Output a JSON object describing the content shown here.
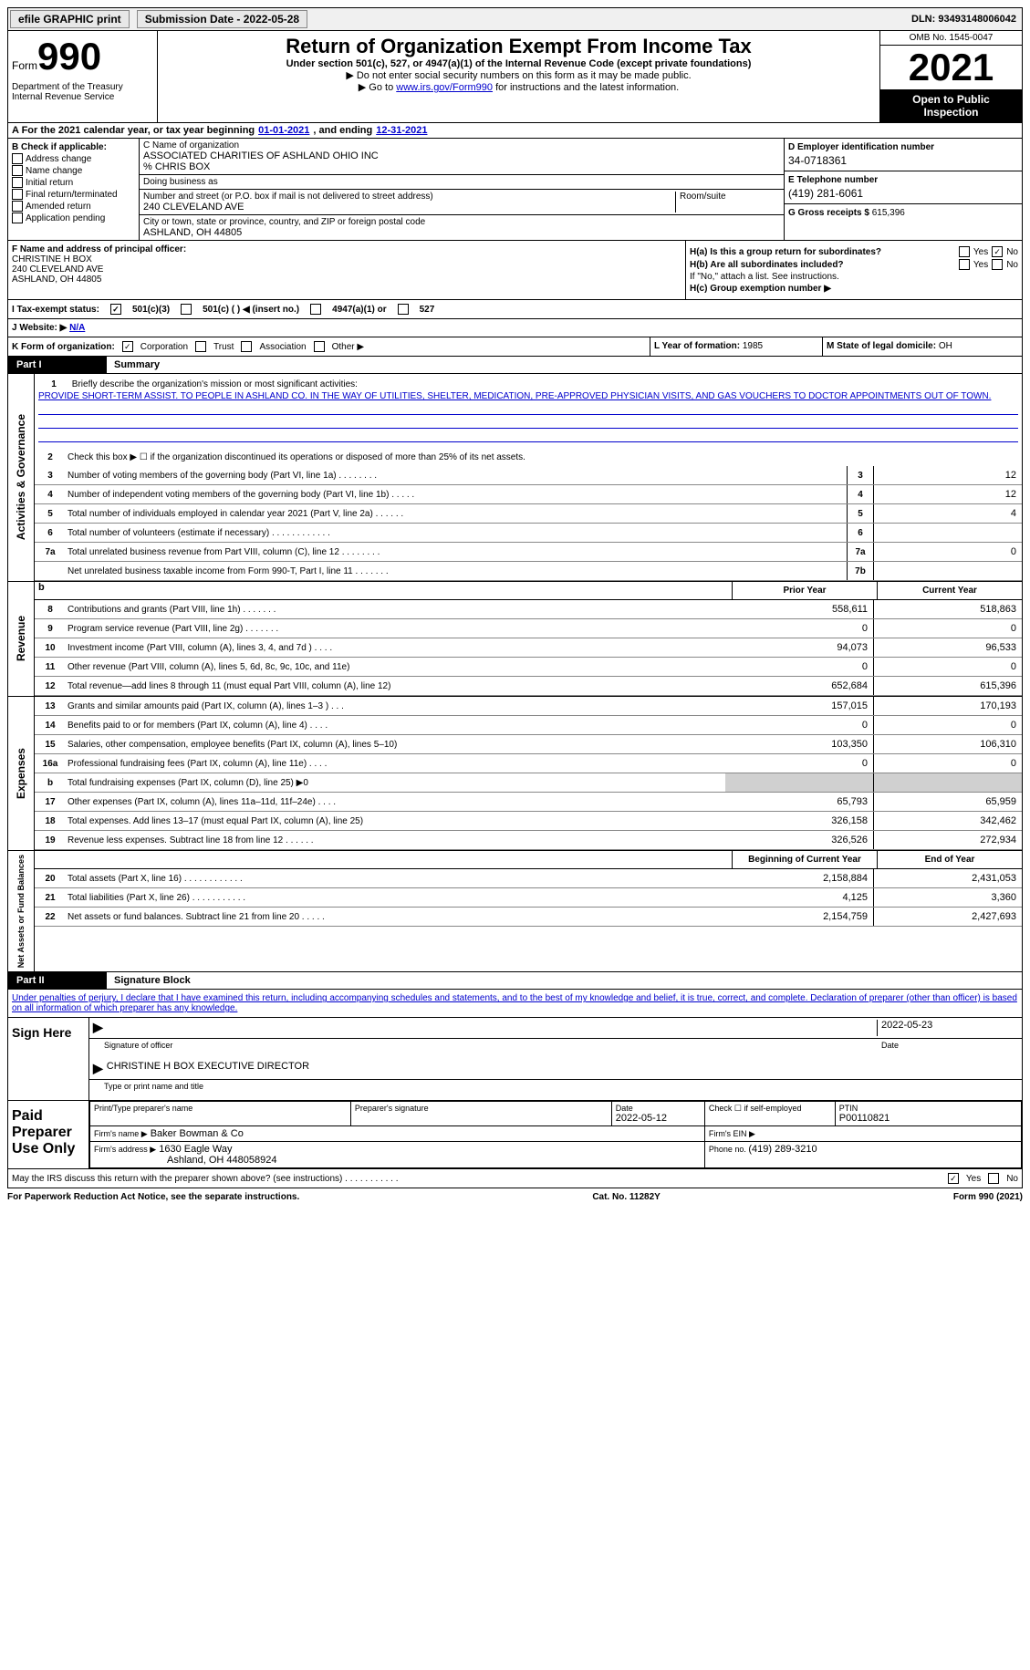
{
  "topbar": {
    "efile": "efile GRAPHIC print",
    "submission_label": "Submission Date - ",
    "submission_date": "2022-05-28",
    "dln_label": "DLN: ",
    "dln": "93493148006042"
  },
  "header": {
    "form_word": "Form",
    "form_num": "990",
    "dept": "Department of the Treasury\nInternal Revenue Service",
    "title": "Return of Organization Exempt From Income Tax",
    "subtitle": "Under section 501(c), 527, or 4947(a)(1) of the Internal Revenue Code (except private foundations)",
    "note1": "▶ Do not enter social security numbers on this form as it may be made public.",
    "note2_pre": "▶ Go to ",
    "note2_link": "www.irs.gov/Form990",
    "note2_post": " for instructions and the latest information.",
    "omb": "OMB No. 1545-0047",
    "year": "2021",
    "inspect": "Open to Public Inspection"
  },
  "row_a": {
    "label": "A For the 2021 calendar year, or tax year beginning ",
    "begin": "01-01-2021",
    "mid": ", and ending ",
    "end": "12-31-2021"
  },
  "col_b": {
    "label": "B Check if applicable:",
    "items": [
      "Address change",
      "Name change",
      "Initial return",
      "Final return/terminated",
      "Amended return",
      "Application pending"
    ]
  },
  "col_c": {
    "name_label": "C Name of organization",
    "name": "ASSOCIATED CHARITIES OF ASHLAND OHIO INC",
    "care_of": "% CHRIS BOX",
    "dba_label": "Doing business as",
    "addr_label": "Number and street (or P.O. box if mail is not delivered to street address)",
    "addr": "240 CLEVELAND AVE",
    "room_label": "Room/suite",
    "city_label": "City or town, state or province, country, and ZIP or foreign postal code",
    "city": "ASHLAND, OH  44805"
  },
  "col_d": {
    "d_label": "D Employer identification number",
    "ein": "34-0718361",
    "e_label": "E Telephone number",
    "phone": "(419) 281-6061",
    "g_label": "G Gross receipts $ ",
    "gross": "615,396"
  },
  "col_f": {
    "label": "F Name and address of principal officer:",
    "name": "CHRISTINE H BOX",
    "addr1": "240 CLEVELAND AVE",
    "addr2": "ASHLAND, OH  44805"
  },
  "col_h": {
    "ha": "H(a)  Is this a group return for subordinates?",
    "hb": "H(b)  Are all subordinates included?",
    "hb_note": "If \"No,\" attach a list. See instructions.",
    "hc": "H(c)  Group exemption number ▶",
    "yes": "Yes",
    "no": "No"
  },
  "section_i": {
    "label": "I   Tax-exempt status:",
    "opt1": "501(c)(3)",
    "opt2": "501(c) (   ) ◀ (insert no.)",
    "opt3": "4947(a)(1) or",
    "opt4": "527"
  },
  "section_j": {
    "label": "J   Website: ▶",
    "val": "N/A"
  },
  "col_k": {
    "label": "K Form of organization:",
    "opt1": "Corporation",
    "opt2": "Trust",
    "opt3": "Association",
    "opt4": "Other ▶"
  },
  "col_l": {
    "label": "L Year of formation: ",
    "val": "1985"
  },
  "col_m": {
    "label": "M State of legal domicile: ",
    "val": "OH"
  },
  "part1": {
    "label": "Part I",
    "title": "Summary",
    "line1_label": "Briefly describe the organization's mission or most significant activities:",
    "mission": "PROVIDE SHORT-TERM ASSIST. TO PEOPLE IN ASHLAND CO. IN THE WAY OF UTILITIES, SHELTER, MEDICATION, PRE-APPROVED PHYSICIAN VISITS, AND GAS VOUCHERS TO DOCTOR APPOINTMENTS OUT OF TOWN.",
    "line2": "Check this box ▶ ☐  if the organization discontinued its operations or disposed of more than 25% of its net assets.",
    "vert_activities": "Activities & Governance",
    "vert_revenue": "Revenue",
    "vert_expenses": "Expenses",
    "vert_net": "Net Assets or Fund Balances"
  },
  "summary_lines": [
    {
      "n": "3",
      "d": "Number of voting members of the governing body (Part VI, line 1a)  .  .  .  .  .  .  .  .",
      "box": "3",
      "v": "12"
    },
    {
      "n": "4",
      "d": "Number of independent voting members of the governing body (Part VI, line 1b)  .  .  .  .  .",
      "box": "4",
      "v": "12"
    },
    {
      "n": "5",
      "d": "Total number of individuals employed in calendar year 2021 (Part V, line 2a)  .  .  .  .  .  .",
      "box": "5",
      "v": "4"
    },
    {
      "n": "6",
      "d": "Total number of volunteers (estimate if necessary)  .  .  .  .  .  .  .  .  .  .  .  .",
      "box": "6",
      "v": ""
    },
    {
      "n": "7a",
      "d": "Total unrelated business revenue from Part VIII, column (C), line 12  .  .  .  .  .  .  .  .",
      "box": "7a",
      "v": "0"
    },
    {
      "n": "",
      "d": "Net unrelated business taxable income from Form 990-T, Part I, line 11  .  .  .  .  .  .  .",
      "box": "7b",
      "v": ""
    }
  ],
  "two_col_header": {
    "prior": "Prior Year",
    "current": "Current Year",
    "begin": "Beginning of Current Year",
    "end": "End of Year"
  },
  "revenue_lines": [
    {
      "n": "8",
      "d": "Contributions and grants (Part VIII, line 1h)  .  .  .  .  .  .  .",
      "p": "558,611",
      "c": "518,863"
    },
    {
      "n": "9",
      "d": "Program service revenue (Part VIII, line 2g)  .  .  .  .  .  .  .",
      "p": "0",
      "c": "0"
    },
    {
      "n": "10",
      "d": "Investment income (Part VIII, column (A), lines 3, 4, and 7d )  .  .  .  .",
      "p": "94,073",
      "c": "96,533"
    },
    {
      "n": "11",
      "d": "Other revenue (Part VIII, column (A), lines 5, 6d, 8c, 9c, 10c, and 11e)",
      "p": "0",
      "c": "0"
    },
    {
      "n": "12",
      "d": "Total revenue—add lines 8 through 11 (must equal Part VIII, column (A), line 12)",
      "p": "652,684",
      "c": "615,396"
    }
  ],
  "expense_lines": [
    {
      "n": "13",
      "d": "Grants and similar amounts paid (Part IX, column (A), lines 1–3 )  .  .  .",
      "p": "157,015",
      "c": "170,193"
    },
    {
      "n": "14",
      "d": "Benefits paid to or for members (Part IX, column (A), line 4)  .  .  .  .",
      "p": "0",
      "c": "0"
    },
    {
      "n": "15",
      "d": "Salaries, other compensation, employee benefits (Part IX, column (A), lines 5–10)",
      "p": "103,350",
      "c": "106,310"
    },
    {
      "n": "16a",
      "d": "Professional fundraising fees (Part IX, column (A), line 11e)  .  .  .  .",
      "p": "0",
      "c": "0"
    },
    {
      "n": "b",
      "d": "Total fundraising expenses (Part IX, column (D), line 25) ▶0",
      "p": "",
      "c": "",
      "shade": true
    },
    {
      "n": "17",
      "d": "Other expenses (Part IX, column (A), lines 11a–11d, 11f–24e)  .  .  .  .",
      "p": "65,793",
      "c": "65,959"
    },
    {
      "n": "18",
      "d": "Total expenses. Add lines 13–17 (must equal Part IX, column (A), line 25)",
      "p": "326,158",
      "c": "342,462"
    },
    {
      "n": "19",
      "d": "Revenue less expenses. Subtract line 18 from line 12  .  .  .  .  .  .",
      "p": "326,526",
      "c": "272,934"
    }
  ],
  "net_lines": [
    {
      "n": "20",
      "d": "Total assets (Part X, line 16)  .  .  .  .  .  .  .  .  .  .  .  .",
      "p": "2,158,884",
      "c": "2,431,053"
    },
    {
      "n": "21",
      "d": "Total liabilities (Part X, line 26)  .  .  .  .  .  .  .  .  .  .  .",
      "p": "4,125",
      "c": "3,360"
    },
    {
      "n": "22",
      "d": "Net assets or fund balances. Subtract line 21 from line 20  .  .  .  .  .",
      "p": "2,154,759",
      "c": "2,427,693"
    }
  ],
  "part2": {
    "label": "Part II",
    "title": "Signature Block",
    "penalty": "Under penalties of perjury, I declare that I have examined this return, including accompanying schedules and statements, and to the best of my knowledge and belief, it is true, correct, and complete. Declaration of preparer (other than officer) is based on all information of which preparer has any knowledge."
  },
  "sign": {
    "label": "Sign Here",
    "sig_label": "Signature of officer",
    "date": "2022-05-23",
    "date_label": "Date",
    "name": "CHRISTINE H BOX  EXECUTIVE DIRECTOR",
    "name_label": "Type or print name and title"
  },
  "prep": {
    "label": "Paid Preparer Use Only",
    "name_label": "Print/Type preparer's name",
    "sig_label": "Preparer's signature",
    "date_label": "Date",
    "date": "2022-05-12",
    "check_label": "Check ☐ if self-employed",
    "ptin_label": "PTIN",
    "ptin": "P00110821",
    "firm_name_label": "Firm's name   ▶",
    "firm_name": "Baker Bowman & Co",
    "firm_ein_label": "Firm's EIN ▶",
    "firm_addr_label": "Firm's address ▶",
    "firm_addr1": "1630 Eagle Way",
    "firm_addr2": "Ashland, OH  448058924",
    "phone_label": "Phone no. ",
    "phone": "(419) 289-3210"
  },
  "discuss": {
    "text": "May the IRS discuss this return with the preparer shown above? (see instructions)  .  .  .  .  .  .  .  .  .  .  .",
    "yes": "Yes",
    "no": "No"
  },
  "footer": {
    "left": "For Paperwork Reduction Act Notice, see the separate instructions.",
    "mid": "Cat. No. 11282Y",
    "right": "Form 990 (2021)"
  }
}
